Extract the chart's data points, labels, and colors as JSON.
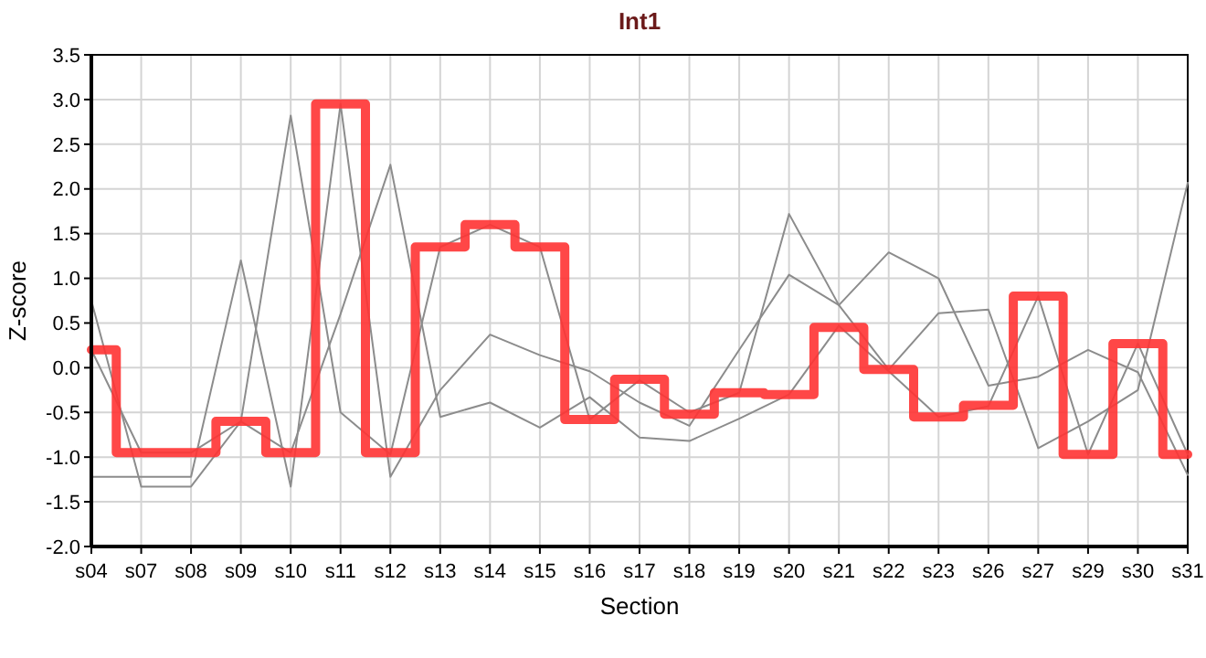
{
  "chart_data": {
    "type": "line",
    "title": "Int1",
    "xlabel": "Section",
    "ylabel": "Z-score",
    "categories": [
      "s04",
      "s07",
      "s08",
      "s09",
      "s10",
      "s11",
      "s12",
      "s13",
      "s14",
      "s15",
      "s16",
      "s17",
      "s18",
      "s19",
      "s20",
      "s21",
      "s22",
      "s23",
      "s26",
      "s27",
      "s29",
      "s30",
      "s31"
    ],
    "series": [
      {
        "color": "#8c8c8c",
        "values": [
          0.75,
          -1.33,
          -1.33,
          -0.6,
          2.82,
          -0.5,
          -0.97,
          1.35,
          1.6,
          1.35,
          -0.58,
          -0.14,
          -0.5,
          -0.28,
          1.72,
          0.7,
          -0.02,
          0.61,
          0.65,
          -0.9,
          -0.6,
          -0.25,
          2.07
        ]
      },
      {
        "color": "#8c8c8c",
        "values": [
          -1.22,
          -1.22,
          -1.22,
          1.2,
          -1.33,
          2.95,
          -1.22,
          -0.25,
          0.37,
          0.14,
          -0.04,
          -0.39,
          -0.65,
          0.2,
          1.04,
          0.7,
          1.29,
          1.0,
          -0.2,
          -0.1,
          0.2,
          -0.05,
          -1.2
        ]
      },
      {
        "color": "#8c8c8c",
        "values": [
          0.2,
          -0.95,
          -0.95,
          -0.6,
          -0.95,
          0.6,
          2.27,
          -0.55,
          -0.39,
          -0.67,
          -0.33,
          -0.78,
          -0.82,
          -0.57,
          -0.3,
          0.47,
          -0.04,
          -0.55,
          -0.43,
          0.8,
          -0.97,
          0.27,
          -0.97
        ]
      },
      {
        "type": "step",
        "color": "#ff3333",
        "values": [
          0.2,
          -0.95,
          -0.95,
          -0.6,
          -0.95,
          2.95,
          -0.95,
          1.35,
          1.6,
          1.35,
          -0.58,
          -0.13,
          -0.52,
          -0.28,
          -0.3,
          0.45,
          -0.02,
          -0.55,
          -0.42,
          0.8,
          -0.97,
          0.27,
          -0.97
        ]
      }
    ],
    "ylim": [
      -2.0,
      3.5
    ],
    "yticks": [
      {
        "value": -2,
        "label": "-2.0"
      },
      {
        "value": -1.5,
        "label": "-1.5"
      },
      {
        "value": -1,
        "label": "-1.0"
      },
      {
        "value": -0.5,
        "label": "-0.5"
      },
      {
        "value": 0,
        "label": "0.0"
      },
      {
        "value": 0.5,
        "label": "0.5"
      },
      {
        "value": 1,
        "label": "1.0"
      },
      {
        "value": 1.5,
        "label": "1.5"
      },
      {
        "value": 2,
        "label": "2.0"
      },
      {
        "value": 2.5,
        "label": "2.5"
      },
      {
        "value": 3,
        "label": "3.0"
      },
      {
        "value": 3.5,
        "label": "3.5"
      }
    ],
    "grid": true,
    "marker": "none"
  }
}
